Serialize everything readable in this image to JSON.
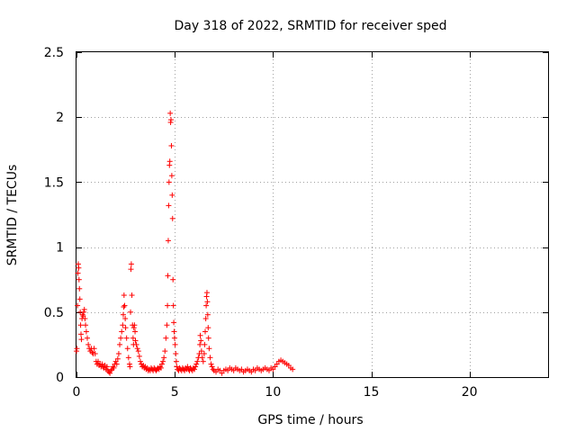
{
  "chart_data": {
    "type": "scatter",
    "title": "Day 318 of 2022, SRMTID for receiver sped",
    "xlabel": "GPS time / hours",
    "ylabel": "SRMTID / TECUs",
    "xlim": [
      0,
      24
    ],
    "ylim": [
      0,
      2.5
    ],
    "xticks": [
      0,
      5,
      10,
      15,
      20
    ],
    "xtick_labels": [
      "0",
      "5",
      "10",
      "15",
      "20"
    ],
    "yticks": [
      0,
      0.5,
      1,
      1.5,
      2,
      2.5
    ],
    "ytick_labels": [
      "0",
      "0.5",
      "1",
      "1.5",
      "2",
      "2.5"
    ],
    "grid": true,
    "marker": "+",
    "series": [
      {
        "name": "SRMTID",
        "color": "#ff0000",
        "points": [
          [
            0.0,
            0.2
          ],
          [
            0.02,
            0.22
          ],
          [
            0.05,
            0.55
          ],
          [
            0.07,
            0.8
          ],
          [
            0.09,
            0.87
          ],
          [
            0.11,
            0.84
          ],
          [
            0.13,
            0.75
          ],
          [
            0.15,
            0.68
          ],
          [
            0.17,
            0.6
          ],
          [
            0.19,
            0.5
          ],
          [
            0.21,
            0.4
          ],
          [
            0.23,
            0.33
          ],
          [
            0.25,
            0.29
          ],
          [
            0.28,
            0.45
          ],
          [
            0.31,
            0.48
          ],
          [
            0.34,
            0.47
          ],
          [
            0.37,
            0.5
          ],
          [
            0.4,
            0.52
          ],
          [
            0.43,
            0.45
          ],
          [
            0.46,
            0.4
          ],
          [
            0.5,
            0.35
          ],
          [
            0.55,
            0.3
          ],
          [
            0.6,
            0.25
          ],
          [
            0.65,
            0.22
          ],
          [
            0.7,
            0.2
          ],
          [
            0.75,
            0.22
          ],
          [
            0.8,
            0.19
          ],
          [
            0.85,
            0.18
          ],
          [
            0.9,
            0.22
          ],
          [
            0.95,
            0.18
          ],
          [
            1.0,
            0.12
          ],
          [
            1.05,
            0.1
          ],
          [
            1.1,
            0.12
          ],
          [
            1.15,
            0.09
          ],
          [
            1.2,
            0.1
          ],
          [
            1.25,
            0.08
          ],
          [
            1.3,
            0.1
          ],
          [
            1.35,
            0.08
          ],
          [
            1.4,
            0.07
          ],
          [
            1.45,
            0.09
          ],
          [
            1.5,
            0.06
          ],
          [
            1.55,
            0.08
          ],
          [
            1.6,
            0.05
          ],
          [
            1.65,
            0.04
          ],
          [
            1.7,
            0.03
          ],
          [
            1.75,
            0.05
          ],
          [
            1.8,
            0.06
          ],
          [
            1.85,
            0.08
          ],
          [
            1.9,
            0.07
          ],
          [
            1.95,
            0.1
          ],
          [
            2.0,
            0.12
          ],
          [
            2.05,
            0.1
          ],
          [
            2.1,
            0.14
          ],
          [
            2.15,
            0.18
          ],
          [
            2.2,
            0.25
          ],
          [
            2.25,
            0.3
          ],
          [
            2.3,
            0.35
          ],
          [
            2.35,
            0.4
          ],
          [
            2.38,
            0.48
          ],
          [
            2.4,
            0.54
          ],
          [
            2.42,
            0.63
          ],
          [
            2.45,
            0.55
          ],
          [
            2.48,
            0.45
          ],
          [
            2.5,
            0.38
          ],
          [
            2.55,
            0.3
          ],
          [
            2.6,
            0.22
          ],
          [
            2.65,
            0.15
          ],
          [
            2.7,
            0.1
          ],
          [
            2.72,
            0.08
          ],
          [
            2.75,
            0.5
          ],
          [
            2.77,
            0.83
          ],
          [
            2.79,
            0.87
          ],
          [
            2.82,
            0.63
          ],
          [
            2.85,
            0.4
          ],
          [
            2.88,
            0.3
          ],
          [
            2.9,
            0.25
          ],
          [
            2.92,
            0.38
          ],
          [
            2.95,
            0.4
          ],
          [
            2.98,
            0.35
          ],
          [
            3.0,
            0.28
          ],
          [
            3.05,
            0.25
          ],
          [
            3.1,
            0.22
          ],
          [
            3.15,
            0.2
          ],
          [
            3.2,
            0.16
          ],
          [
            3.25,
            0.12
          ],
          [
            3.3,
            0.1
          ],
          [
            3.35,
            0.08
          ],
          [
            3.4,
            0.09
          ],
          [
            3.45,
            0.07
          ],
          [
            3.5,
            0.08
          ],
          [
            3.55,
            0.06
          ],
          [
            3.6,
            0.07
          ],
          [
            3.65,
            0.05
          ],
          [
            3.7,
            0.06
          ],
          [
            3.75,
            0.05
          ],
          [
            3.8,
            0.07
          ],
          [
            3.85,
            0.06
          ],
          [
            3.9,
            0.05
          ],
          [
            3.95,
            0.07
          ],
          [
            4.0,
            0.06
          ],
          [
            4.05,
            0.05
          ],
          [
            4.1,
            0.06
          ],
          [
            4.15,
            0.07
          ],
          [
            4.2,
            0.06
          ],
          [
            4.25,
            0.08
          ],
          [
            4.3,
            0.07
          ],
          [
            4.35,
            0.1
          ],
          [
            4.4,
            0.12
          ],
          [
            4.45,
            0.15
          ],
          [
            4.5,
            0.2
          ],
          [
            4.55,
            0.3
          ],
          [
            4.6,
            0.4
          ],
          [
            4.63,
            0.55
          ],
          [
            4.65,
            0.78
          ],
          [
            4.67,
            1.05
          ],
          [
            4.69,
            1.32
          ],
          [
            4.71,
            1.5
          ],
          [
            4.73,
            1.63
          ],
          [
            4.75,
            1.66
          ],
          [
            4.77,
            2.03
          ],
          [
            4.79,
            1.96
          ],
          [
            4.81,
            1.98
          ],
          [
            4.83,
            1.78
          ],
          [
            4.85,
            1.55
          ],
          [
            4.87,
            1.4
          ],
          [
            4.89,
            1.22
          ],
          [
            4.91,
            0.75
          ],
          [
            4.93,
            0.55
          ],
          [
            4.95,
            0.42
          ],
          [
            4.97,
            0.35
          ],
          [
            4.99,
            0.3
          ],
          [
            5.02,
            0.25
          ],
          [
            5.05,
            0.18
          ],
          [
            5.08,
            0.12
          ],
          [
            5.1,
            0.08
          ],
          [
            5.15,
            0.06
          ],
          [
            5.2,
            0.05
          ],
          [
            5.25,
            0.07
          ],
          [
            5.3,
            0.06
          ],
          [
            5.35,
            0.05
          ],
          [
            5.4,
            0.07
          ],
          [
            5.45,
            0.06
          ],
          [
            5.5,
            0.05
          ],
          [
            5.55,
            0.07
          ],
          [
            5.6,
            0.06
          ],
          [
            5.65,
            0.08
          ],
          [
            5.7,
            0.06
          ],
          [
            5.75,
            0.05
          ],
          [
            5.8,
            0.07
          ],
          [
            5.85,
            0.06
          ],
          [
            5.9,
            0.05
          ],
          [
            5.95,
            0.07
          ],
          [
            6.0,
            0.06
          ],
          [
            6.05,
            0.08
          ],
          [
            6.1,
            0.1
          ],
          [
            6.15,
            0.12
          ],
          [
            6.2,
            0.15
          ],
          [
            6.25,
            0.18
          ],
          [
            6.28,
            0.25
          ],
          [
            6.3,
            0.32
          ],
          [
            6.33,
            0.28
          ],
          [
            6.36,
            0.2
          ],
          [
            6.4,
            0.15
          ],
          [
            6.45,
            0.12
          ],
          [
            6.5,
            0.18
          ],
          [
            6.52,
            0.25
          ],
          [
            6.55,
            0.35
          ],
          [
            6.58,
            0.45
          ],
          [
            6.6,
            0.55
          ],
          [
            6.62,
            0.62
          ],
          [
            6.64,
            0.65
          ],
          [
            6.66,
            0.58
          ],
          [
            6.68,
            0.48
          ],
          [
            6.7,
            0.38
          ],
          [
            6.72,
            0.3
          ],
          [
            6.75,
            0.22
          ],
          [
            6.8,
            0.15
          ],
          [
            6.85,
            0.1
          ],
          [
            6.9,
            0.08
          ],
          [
            6.95,
            0.06
          ],
          [
            7.0,
            0.05
          ],
          [
            7.1,
            0.04
          ],
          [
            7.2,
            0.06
          ],
          [
            7.3,
            0.05
          ],
          [
            7.4,
            0.03
          ],
          [
            7.5,
            0.05
          ],
          [
            7.6,
            0.06
          ],
          [
            7.7,
            0.05
          ],
          [
            7.8,
            0.07
          ],
          [
            7.9,
            0.06
          ],
          [
            8.0,
            0.05
          ],
          [
            8.1,
            0.07
          ],
          [
            8.2,
            0.06
          ],
          [
            8.3,
            0.05
          ],
          [
            8.4,
            0.06
          ],
          [
            8.5,
            0.04
          ],
          [
            8.6,
            0.05
          ],
          [
            8.7,
            0.06
          ],
          [
            8.8,
            0.05
          ],
          [
            8.9,
            0.04
          ],
          [
            9.0,
            0.06
          ],
          [
            9.1,
            0.05
          ],
          [
            9.2,
            0.07
          ],
          [
            9.3,
            0.06
          ],
          [
            9.4,
            0.05
          ],
          [
            9.5,
            0.06
          ],
          [
            9.6,
            0.07
          ],
          [
            9.7,
            0.06
          ],
          [
            9.8,
            0.05
          ],
          [
            9.9,
            0.07
          ],
          [
            10.0,
            0.06
          ],
          [
            10.1,
            0.08
          ],
          [
            10.2,
            0.1
          ],
          [
            10.3,
            0.12
          ],
          [
            10.4,
            0.13
          ],
          [
            10.5,
            0.12
          ],
          [
            10.6,
            0.11
          ],
          [
            10.7,
            0.1
          ],
          [
            10.8,
            0.09
          ],
          [
            10.9,
            0.07
          ],
          [
            11.0,
            0.06
          ]
        ]
      }
    ]
  }
}
